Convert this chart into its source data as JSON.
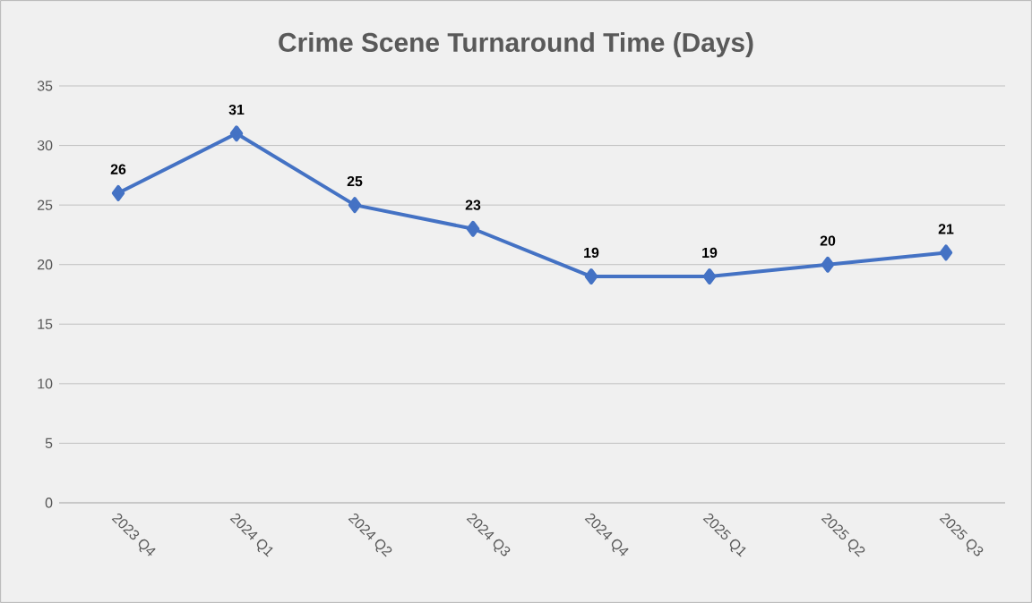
{
  "chart_data": {
    "type": "line",
    "title": "Crime Scene Turnaround Time (Days)",
    "categories": [
      "2023 Q4",
      "2024 Q1",
      "2024 Q2",
      "2024 Q3",
      "2024 Q4",
      "2025 Q1",
      "2025 Q2",
      "2025 Q3"
    ],
    "values": [
      26,
      31,
      25,
      23,
      19,
      19,
      20,
      21
    ],
    "color": "#4472c4",
    "marker": "diamond",
    "line_style": "solid",
    "ylim": [
      0,
      35
    ],
    "yticks": [
      0,
      5,
      10,
      15,
      20,
      25,
      30,
      35
    ],
    "grid": "y",
    "data_labels": true
  }
}
